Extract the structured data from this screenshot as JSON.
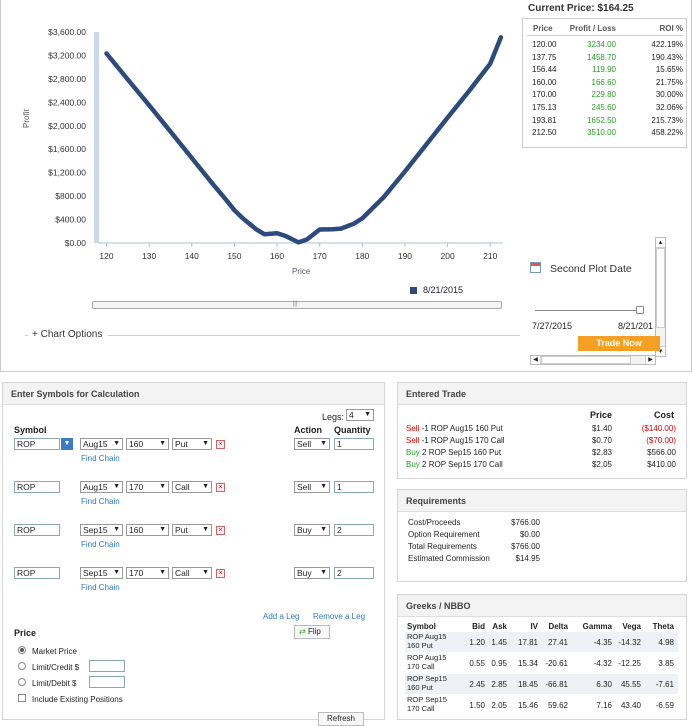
{
  "chart": {
    "legend_date": "8/21/2015",
    "options_label": "+ Chart Options",
    "axis_xlabel": "Price",
    "axis_ylabel": "Profit"
  },
  "chart_data": {
    "type": "line",
    "xlabel": "Price",
    "ylabel": "Profit",
    "xlim": [
      118,
      213
    ],
    "ylim": [
      0,
      3600
    ],
    "x_ticks": [
      120,
      130,
      140,
      150,
      160,
      170,
      180,
      190,
      200,
      210
    ],
    "y_ticks": [
      "$0.00",
      "$400.00",
      "$800.00",
      "$1,200.00",
      "$1,600.00",
      "$2,000.00",
      "$2,400.00",
      "$2,800.00",
      "$3,200.00",
      "$3,600.00"
    ],
    "y_tick_values": [
      0,
      400,
      800,
      1200,
      1600,
      2000,
      2400,
      2800,
      3200,
      3600
    ],
    "series": [
      {
        "name": "8/21/2015",
        "color": "#2c4a7c",
        "x": [
          120,
          125,
          130,
          135,
          140,
          145,
          148,
          150,
          152,
          155,
          157,
          160,
          162,
          165,
          167,
          170,
          173,
          175,
          178,
          180,
          185,
          190,
          195,
          200,
          205,
          210,
          212.5
        ],
        "y": [
          3234,
          2790,
          2350,
          1900,
          1450,
          1000,
          740,
          560,
          420,
          240,
          150,
          167,
          120,
          10,
          60,
          230,
          235,
          246,
          330,
          420,
          780,
          1220,
          1680,
          2140,
          2590,
          3060,
          3510
        ]
      }
    ]
  },
  "price_panel": {
    "current_price": "Current Price: $164.25",
    "headers": [
      "Price",
      "Profit / Loss",
      "ROI %"
    ],
    "rows": [
      [
        "120.00",
        "3234.00",
        "422.19%"
      ],
      [
        "137.75",
        "1458.70",
        "190.43%"
      ],
      [
        "156.44",
        "119.90",
        "15.65%"
      ],
      [
        "160.00",
        "166.60",
        "21.75%"
      ],
      [
        "170.00",
        "229.80",
        "30.00%"
      ],
      [
        "175.13",
        "245.60",
        "32.06%"
      ],
      [
        "193.81",
        "1652.50",
        "215.73%"
      ],
      [
        "212.50",
        "3510.00",
        "458.22%"
      ]
    ],
    "second_plot_label": "Second Plot Date",
    "slider_start": "7/27/2015",
    "slider_end": "8/21/201",
    "trade_now": "Trade Now"
  },
  "calc": {
    "title": "Enter Symbols for Calculation",
    "legs_label": "Legs:",
    "legs_value": "4",
    "col_symbol": "Symbol",
    "col_action": "Action",
    "col_quantity": "Quantity",
    "find_chain": "Find Chain",
    "legs": [
      {
        "symbol": "ROP",
        "exp": "Aug15",
        "strike": "160",
        "type": "Put",
        "action": "Sell",
        "qty": "1"
      },
      {
        "symbol": "ROP",
        "exp": "Aug15",
        "strike": "170",
        "type": "Call",
        "action": "Sell",
        "qty": "1"
      },
      {
        "symbol": "ROP",
        "exp": "Sep15",
        "strike": "160",
        "type": "Put",
        "action": "Buy",
        "qty": "2"
      },
      {
        "symbol": "ROP",
        "exp": "Sep15",
        "strike": "170",
        "type": "Call",
        "action": "Buy",
        "qty": "2"
      }
    ],
    "add_leg": "Add a Leg",
    "remove_leg": "Remove a Leg",
    "flip": "Flip",
    "price_title": "Price",
    "market_price": "Market Price",
    "limit_credit": "Limit/Credit $",
    "limit_debit": "Limit/Debit $",
    "include_existing": "Include Existing Positions",
    "refresh": "Refresh"
  },
  "entered_trade": {
    "title": "Entered Trade",
    "col_price": "Price",
    "col_cost": "Cost",
    "rows": [
      {
        "action": "Sell",
        "desc": " -1 ROP Aug15 160 Put",
        "price": "$1.40",
        "cost": "($140.00)"
      },
      {
        "action": "Sell",
        "desc": " -1 ROP Aug15 170 Call",
        "price": "$0.70",
        "cost": "($70.00)"
      },
      {
        "action": "Buy",
        "desc": " 2 ROP Sep15 160 Put",
        "price": "$2.83",
        "cost": "$566.00"
      },
      {
        "action": "Buy",
        "desc": " 2 ROP Sep15 170 Call",
        "price": "$2.05",
        "cost": "$410.00"
      }
    ]
  },
  "requirements": {
    "title": "Requirements",
    "rows": [
      [
        "Cost/Proceeds",
        "$766.00"
      ],
      [
        "Option Requirement",
        "$0.00"
      ],
      [
        "Total Requirements",
        "$766.00"
      ],
      [
        "Estimated Commission",
        "$14.95"
      ]
    ]
  },
  "greeks": {
    "title": "Greeks / NBBO",
    "headers": [
      "Symbol",
      "Bid",
      "Ask",
      "IV",
      "Delta",
      "Gamma",
      "Vega",
      "Theta"
    ],
    "rows": [
      [
        "ROP Aug15 160 Put",
        "1.20",
        "1.45",
        "17.81",
        "27.41",
        "-4.35",
        "-14.32",
        "4.98"
      ],
      [
        "ROP Aug15 170 Call",
        "0.55",
        "0.95",
        "15.34",
        "-20.61",
        "-4.32",
        "-12.25",
        "3.85"
      ],
      [
        "ROP Sep15 160 Put",
        "2.45",
        "2.85",
        "18.45",
        "-66.81",
        "6.30",
        "45.55",
        "-7.61"
      ],
      [
        "ROP Sep15 170 Call",
        "1.50",
        "2.05",
        "15.46",
        "59.62",
        "7.16",
        "43.40",
        "-6.59"
      ]
    ]
  }
}
